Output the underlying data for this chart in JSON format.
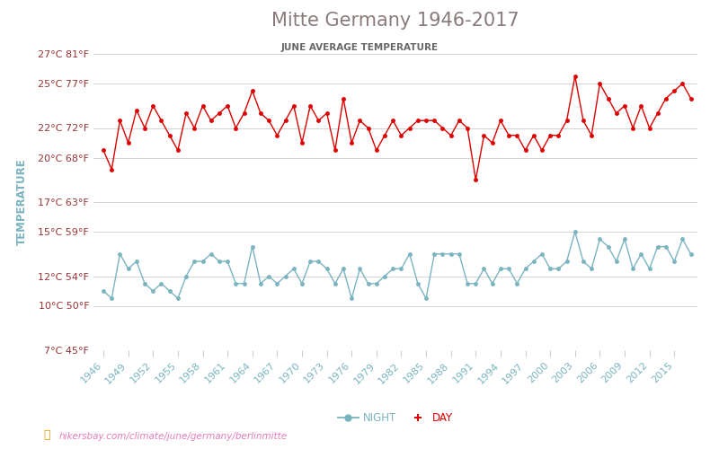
{
  "title": "Mitte Germany 1946-2017",
  "subtitle": "JUNE AVERAGE TEMPERATURE",
  "ylabel": "TEMPERATURE",
  "url_label": "hikersbay.com/climate/june/germany/berlinmitte",
  "years": [
    1946,
    1947,
    1948,
    1949,
    1950,
    1951,
    1952,
    1953,
    1954,
    1955,
    1956,
    1957,
    1958,
    1959,
    1960,
    1961,
    1962,
    1963,
    1964,
    1965,
    1966,
    1967,
    1968,
    1969,
    1970,
    1971,
    1972,
    1973,
    1974,
    1975,
    1976,
    1977,
    1978,
    1979,
    1980,
    1981,
    1982,
    1983,
    1984,
    1985,
    1986,
    1987,
    1988,
    1989,
    1990,
    1991,
    1992,
    1993,
    1994,
    1995,
    1996,
    1997,
    1998,
    1999,
    2000,
    2001,
    2002,
    2003,
    2004,
    2005,
    2006,
    2007,
    2008,
    2009,
    2010,
    2011,
    2012,
    2013,
    2014,
    2015,
    2016,
    2017
  ],
  "day_temps": [
    20.5,
    19.2,
    22.5,
    21.0,
    23.2,
    22.0,
    23.5,
    22.5,
    21.5,
    20.5,
    23.0,
    22.0,
    23.5,
    22.5,
    23.0,
    23.5,
    22.0,
    23.0,
    24.5,
    23.0,
    22.5,
    21.5,
    22.5,
    23.5,
    21.0,
    23.5,
    22.5,
    23.0,
    20.5,
    24.0,
    21.0,
    22.5,
    22.0,
    20.5,
    21.5,
    22.5,
    21.5,
    22.0,
    22.5,
    22.5,
    22.5,
    22.0,
    21.5,
    22.5,
    22.0,
    18.5,
    21.5,
    21.0,
    22.5,
    21.5,
    21.5,
    20.5,
    21.5,
    20.5,
    21.5,
    21.5,
    22.5,
    25.5,
    22.5,
    21.5,
    25.0,
    24.0,
    23.0,
    23.5,
    22.0,
    23.5,
    22.0,
    23.0,
    24.0,
    24.5,
    25.0,
    24.0
  ],
  "night_temps": [
    11.0,
    10.5,
    13.5,
    12.5,
    13.0,
    11.5,
    11.0,
    11.5,
    11.0,
    10.5,
    12.0,
    13.0,
    13.0,
    13.5,
    13.0,
    13.0,
    11.5,
    11.5,
    14.0,
    11.5,
    12.0,
    11.5,
    12.0,
    12.5,
    11.5,
    13.0,
    13.0,
    12.5,
    11.5,
    12.5,
    10.5,
    12.5,
    11.5,
    11.5,
    12.0,
    12.5,
    12.5,
    13.5,
    11.5,
    10.5,
    13.5,
    13.5,
    13.5,
    13.5,
    11.5,
    11.5,
    12.5,
    11.5,
    12.5,
    12.5,
    11.5,
    12.5,
    13.0,
    13.5,
    12.5,
    12.5,
    13.0,
    15.0,
    13.0,
    12.5,
    14.5,
    14.0,
    13.0,
    14.5,
    12.5,
    13.5,
    12.5,
    14.0,
    14.0,
    13.0,
    14.5,
    13.5
  ],
  "yticks_c": [
    7,
    10,
    12,
    15,
    17,
    20,
    22,
    25,
    27
  ],
  "yticks_f": [
    45,
    50,
    54,
    59,
    63,
    68,
    72,
    77,
    81
  ],
  "xtick_years": [
    1946,
    1949,
    1952,
    1955,
    1958,
    1961,
    1964,
    1967,
    1970,
    1973,
    1976,
    1979,
    1982,
    1985,
    1988,
    1991,
    1994,
    1997,
    2000,
    2003,
    2006,
    2009,
    2012,
    2015
  ],
  "day_color": "#dd0000",
  "night_color": "#7ab4c0",
  "grid_color": "#cccccc",
  "title_color": "#8a7a7a",
  "subtitle_color": "#666666",
  "ylabel_color": "#7ab4c0",
  "tick_label_color": "#993333",
  "xtick_label_color": "#7ab4c0",
  "bg_color": "#ffffff",
  "ylim_min": 7,
  "ylim_max": 27,
  "legend_night_color": "#7ab4c0",
  "legend_day_color": "#dd0000",
  "url_color": "#e87cba",
  "url_icon_color": "#e8a000"
}
